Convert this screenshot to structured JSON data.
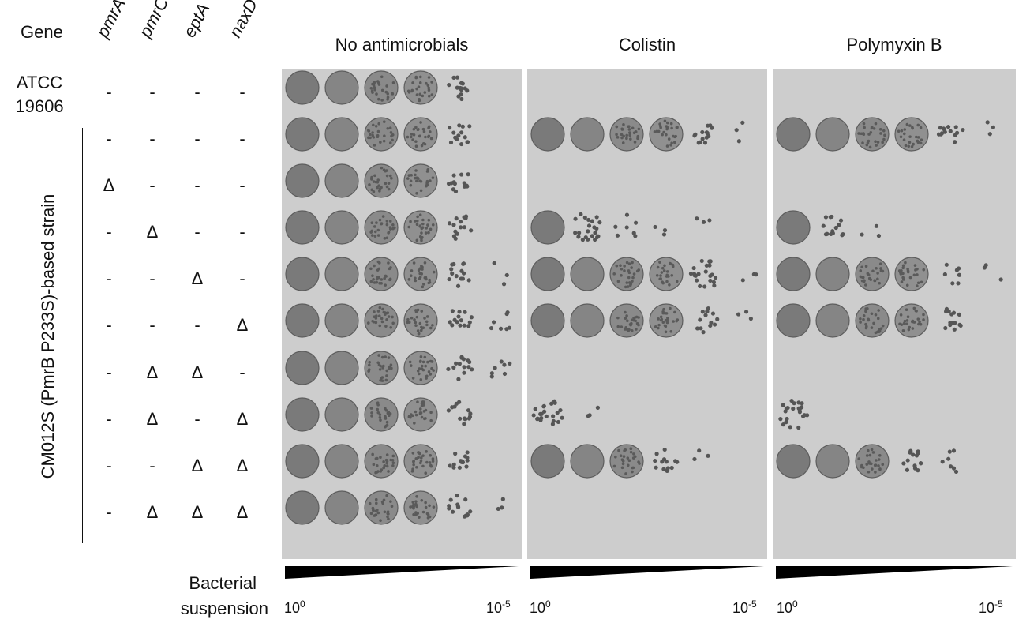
{
  "header": {
    "gene_label": "Gene",
    "genes": [
      "pmrA",
      "pmrC",
      "eptA",
      "naxD"
    ]
  },
  "rows": [
    {
      "strain_line1": "ATCC",
      "strain_line2": "19606",
      "marks": [
        "-",
        "-",
        "-",
        "-"
      ]
    },
    {
      "marks": [
        "-",
        "-",
        "-",
        "-"
      ]
    },
    {
      "marks": [
        "Δ",
        "-",
        "-",
        "-"
      ]
    },
    {
      "marks": [
        "-",
        "Δ",
        "-",
        "-"
      ]
    },
    {
      "marks": [
        "-",
        "-",
        "Δ",
        "-"
      ]
    },
    {
      "marks": [
        "-",
        "-",
        "-",
        "Δ"
      ]
    },
    {
      "marks": [
        "-",
        "Δ",
        "Δ",
        "-"
      ]
    },
    {
      "marks": [
        "-",
        "Δ",
        "-",
        "Δ"
      ]
    },
    {
      "marks": [
        "-",
        "-",
        "Δ",
        "Δ"
      ]
    },
    {
      "marks": [
        "-",
        "Δ",
        "Δ",
        "Δ"
      ]
    }
  ],
  "group_label": "CM012S (PmrB P233S)-based strain",
  "panels": [
    {
      "title": "No antimicrobials",
      "spots": [
        [
          5,
          5,
          5,
          5,
          4,
          0
        ],
        [
          5,
          5,
          5,
          5,
          4,
          0
        ],
        [
          5,
          5,
          5,
          5,
          4,
          0
        ],
        [
          5,
          5,
          5,
          5,
          4,
          0
        ],
        [
          5,
          5,
          5,
          5,
          4,
          1
        ],
        [
          5,
          5,
          5,
          5,
          4,
          2
        ],
        [
          5,
          5,
          5,
          5,
          4,
          2
        ],
        [
          5,
          5,
          5,
          5,
          4,
          0
        ],
        [
          5,
          5,
          5,
          5,
          4,
          0
        ],
        [
          5,
          5,
          5,
          5,
          4,
          1
        ]
      ]
    },
    {
      "title": "Colistin",
      "spots": [
        [
          0,
          0,
          0,
          0,
          0,
          0
        ],
        [
          5,
          5,
          5,
          5,
          4,
          1
        ],
        [
          0,
          0,
          0,
          0,
          0,
          0
        ],
        [
          5,
          3,
          2,
          1,
          1,
          0
        ],
        [
          5,
          5,
          5,
          5,
          3,
          1
        ],
        [
          5,
          5,
          5,
          5,
          4,
          1
        ],
        [
          0,
          0,
          0,
          0,
          0,
          0
        ],
        [
          3,
          1,
          0,
          0,
          0,
          0
        ],
        [
          5,
          5,
          5,
          4,
          1,
          0
        ],
        [
          0,
          0,
          0,
          0,
          0,
          0
        ]
      ]
    },
    {
      "title": "Polymyxin B",
      "spots": [
        [
          0,
          0,
          0,
          0,
          0,
          0
        ],
        [
          5,
          5,
          5,
          5,
          4,
          1
        ],
        [
          0,
          0,
          0,
          0,
          0,
          0
        ],
        [
          5,
          4,
          1,
          0,
          0,
          0
        ],
        [
          5,
          5,
          5,
          5,
          2,
          1
        ],
        [
          5,
          5,
          5,
          5,
          4,
          0
        ],
        [
          0,
          0,
          0,
          0,
          0,
          0
        ],
        [
          3,
          0,
          0,
          0,
          0,
          0
        ],
        [
          5,
          5,
          5,
          4,
          2,
          0
        ],
        [
          0,
          0,
          0,
          0,
          0,
          0
        ]
      ]
    }
  ],
  "footer": {
    "line1": "Bacterial",
    "line2": "suspension",
    "left_base": "10",
    "left_exp": "0",
    "right_base": "10",
    "right_exp": "-5"
  }
}
